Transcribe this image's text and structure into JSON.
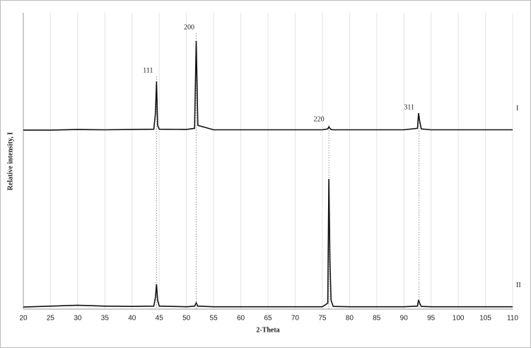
{
  "chart_data": {
    "type": "line",
    "xlabel": "2-Theta",
    "ylabel": "Relative intensity, I",
    "x": [
      20,
      25,
      30,
      35,
      40,
      44,
      44.3,
      44.5,
      44.7,
      45,
      50,
      51.5,
      51.8,
      52.1,
      55,
      60,
      65,
      70,
      75,
      76,
      76.2,
      76.4,
      76.6,
      77,
      80,
      85,
      90,
      92.5,
      92.7,
      92.9,
      93.2,
      95,
      100,
      105,
      110
    ],
    "series": [
      {
        "name": "I",
        "color": "#111111",
        "values": [
          60.4,
          60.4,
          60.6,
          60.5,
          60.6,
          60.7,
          66,
          76.8,
          62,
          60.7,
          60.6,
          61,
          90.5,
          62,
          60.5,
          60.5,
          60.5,
          60.5,
          60.5,
          60.8,
          61.5,
          61,
          60.6,
          60.5,
          60.5,
          60.5,
          60.5,
          61,
          66.1,
          63.5,
          60.8,
          60.5,
          60.5,
          60.5,
          60.5
        ]
      },
      {
        "name": "II",
        "color": "#111111",
        "values": [
          0.7,
          1,
          1.3,
          1,
          0.9,
          1,
          4,
          8.4,
          3,
          1,
          0.8,
          1,
          2.1,
          1,
          0.8,
          0.8,
          0.8,
          0.8,
          0.8,
          2,
          43.9,
          16,
          3,
          0.9,
          0.8,
          0.8,
          0.8,
          1,
          3.1,
          2,
          0.9,
          0.8,
          0.8,
          0.8,
          0.8
        ]
      }
    ],
    "annotations": [
      {
        "text": "111",
        "x": 44.5
      },
      {
        "text": "200",
        "x": 51.8
      },
      {
        "text": "220",
        "x": 76.2
      },
      {
        "text": "311",
        "x": 92.8
      }
    ],
    "xlim": [
      20,
      110
    ],
    "xticks": [
      20,
      25,
      30,
      35,
      40,
      45,
      50,
      55,
      60,
      65,
      70,
      75,
      80,
      85,
      90,
      95,
      100,
      105,
      110
    ],
    "ylim": [
      0,
      100
    ],
    "grid": true
  }
}
